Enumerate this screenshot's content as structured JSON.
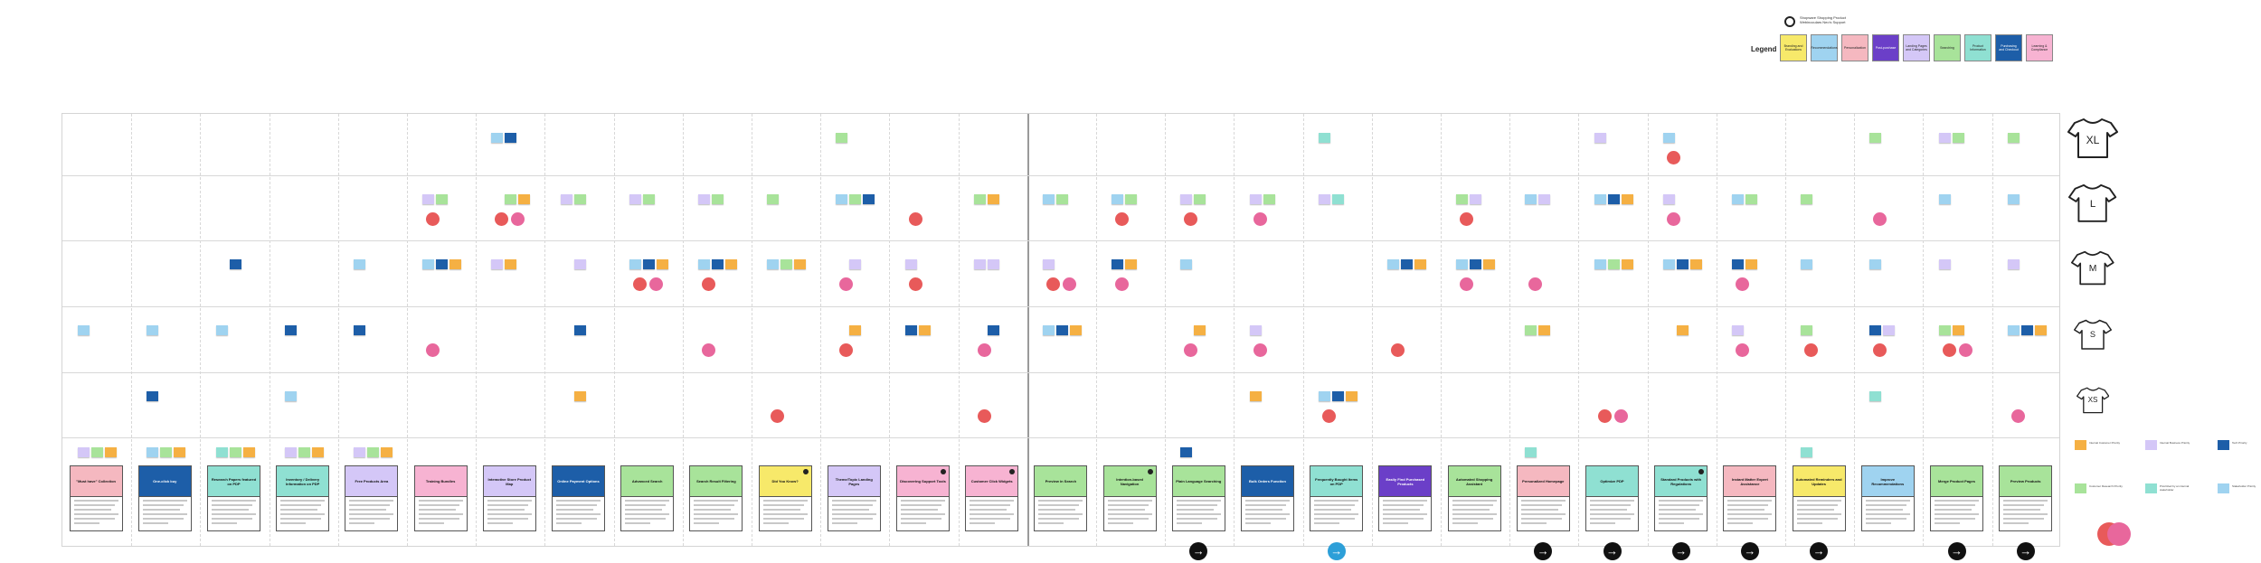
{
  "brand": {
    "name": "Shopware Shopping Product",
    "subtitle": "Webinoculars Neo's Support"
  },
  "legend": {
    "title": "Legend",
    "items": [
      {
        "label": "Branding and Evaluations",
        "color": "#f7e96a"
      },
      {
        "label": "Recommendations",
        "color": "#9fd3f0"
      },
      {
        "label": "Personalization",
        "color": "#f5b8c0"
      },
      {
        "label": "Post-purchase",
        "color": "#6b3fc8"
      },
      {
        "label": "Landing Pages and Categories",
        "color": "#d4c7f7"
      },
      {
        "label": "Searching",
        "color": "#a8e39a"
      },
      {
        "label": "Product Information",
        "color": "#8fe0d2"
      },
      {
        "label": "Purchasing and Checkout",
        "color": "#1d5ea8"
      },
      {
        "label": "Learning & Compliance",
        "color": "#f7b3d2"
      }
    ]
  },
  "sizes": [
    "XL",
    "L",
    "M",
    "S",
    "XS"
  ],
  "cards": [
    {
      "title": "\"Must have\" Collection",
      "color": "#f5b8c0"
    },
    {
      "title": "One-click buy",
      "color": "#1d5ea8"
    },
    {
      "title": "Research Papers featured on PDP",
      "color": "#8fe0d2"
    },
    {
      "title": "Inventory / Delivery Information on PDP",
      "color": "#8fe0d2"
    },
    {
      "title": "Free Products Area",
      "color": "#d4c7f7"
    },
    {
      "title": "Training Bundles",
      "color": "#f7b3d2"
    },
    {
      "title": "Interactive Store Product Map",
      "color": "#d4c7f7"
    },
    {
      "title": "Online Payment Options",
      "color": "#1d5ea8"
    },
    {
      "title": "Advanced Search",
      "color": "#a8e39a"
    },
    {
      "title": "Search Result Filtering",
      "color": "#a8e39a"
    },
    {
      "title": "Did You Know?",
      "color": "#f7e96a"
    },
    {
      "title": "Theme/Topic Landing Pages",
      "color": "#d4c7f7"
    },
    {
      "title": "Discovering Support Tools",
      "color": "#f7b3d2"
    },
    {
      "title": "Customer Click Widgets",
      "color": "#f7b3d2"
    },
    {
      "title": "Preview in Search",
      "color": "#a8e39a"
    },
    {
      "title": "Intention-based Navigation",
      "color": "#a8e39a"
    },
    {
      "title": "Plain Language Searching",
      "color": "#a8e39a"
    },
    {
      "title": "Bulk Orders Function",
      "color": "#1d5ea8"
    },
    {
      "title": "Frequently Bought Items on PDP",
      "color": "#8fe0d2"
    },
    {
      "title": "Easily Find Purchased Products",
      "color": "#6b3fc8"
    },
    {
      "title": "Automated Shopping Assistant",
      "color": "#a8e39a"
    },
    {
      "title": "Personalized Homepage",
      "color": "#f5b8c0"
    },
    {
      "title": "Optimize PDP",
      "color": "#8fe0d2"
    },
    {
      "title": "Standard Products with Regulations",
      "color": "#8fe0d2"
    },
    {
      "title": "Instant Matter Expert Assistance",
      "color": "#f5b8c0"
    },
    {
      "title": "Automated Reminders and Updates",
      "color": "#f7e96a"
    },
    {
      "title": "Improve Recommendations",
      "color": "#9fd3f0"
    },
    {
      "title": "Merge Product Pages",
      "color": "#a8e39a"
    },
    {
      "title": "Preview Products",
      "color": "#a8e39a"
    }
  ],
  "key": {
    "items": [
      {
        "label": "Internal Customer Priority",
        "color": "#f5b043"
      },
      {
        "label": "Internal Business Priority",
        "color": "#d4c7f7"
      },
      {
        "label": "Tech Priority",
        "color": "#1d5ea8"
      },
      {
        "label": "Customer Research Priority",
        "color": "#a8e39a"
      },
      {
        "label": "Prioritized by an internal stakeholder",
        "color": "#8fe0d2"
      },
      {
        "label": "Stakeholder Priority",
        "color": "#9fd3f0"
      }
    ]
  },
  "colors": {
    "orange": "#f5b043",
    "lavender": "#d4c7f7",
    "navy": "#1d5ea8",
    "green": "#a8e39a",
    "teal": "#8fe0d2",
    "sky": "#9fd3f0",
    "red_dot": "#e85a5a",
    "pink_dot": "#e8679c"
  }
}
